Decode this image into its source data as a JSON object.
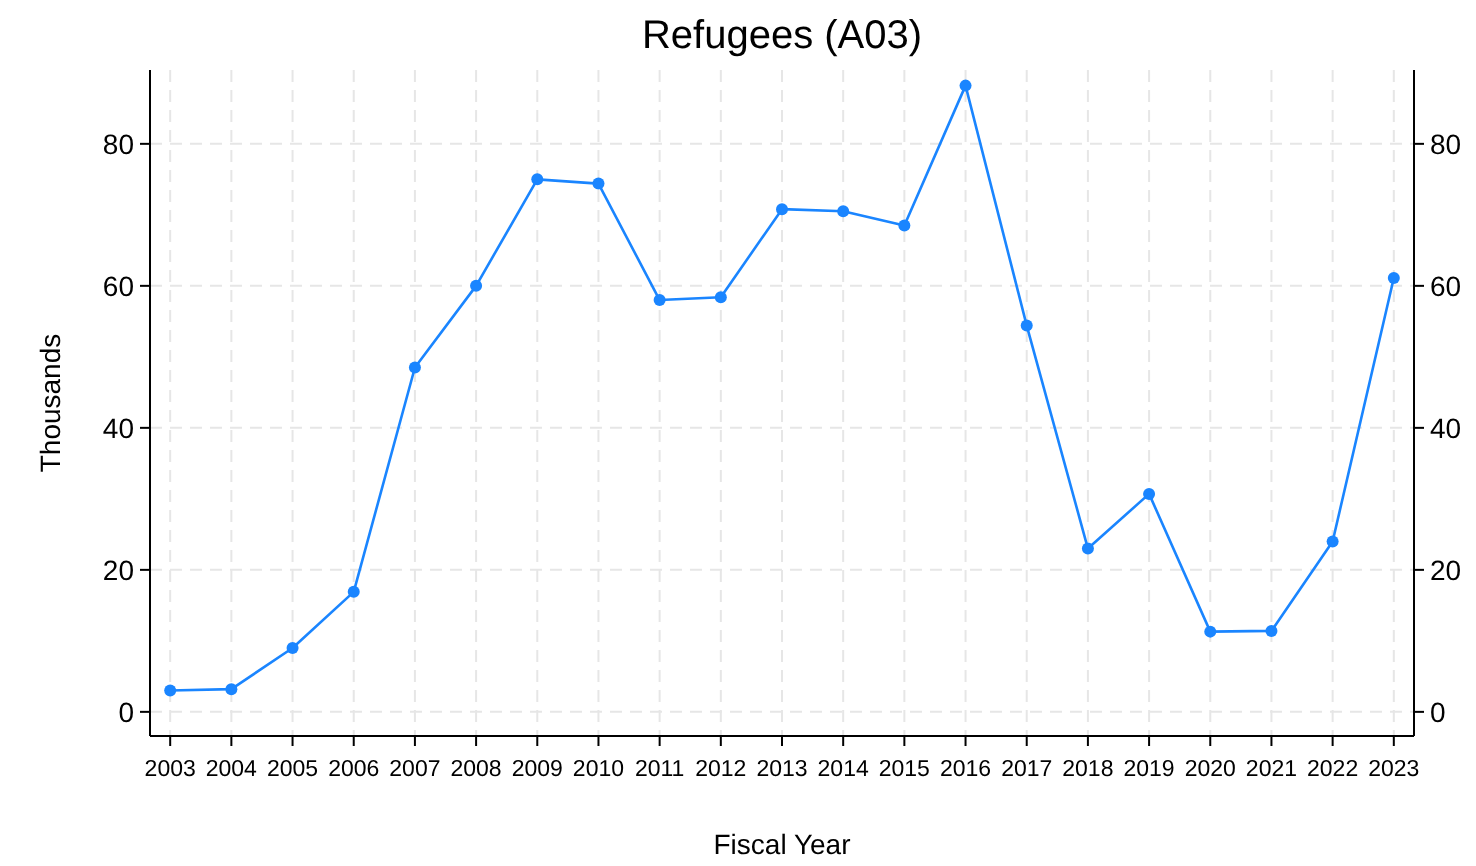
{
  "chart_data": {
    "type": "line",
    "title": "Refugees (A03)",
    "xlabel": "Fiscal Year",
    "ylabel": "Thousands",
    "x": [
      2003,
      2004,
      2005,
      2006,
      2007,
      2008,
      2009,
      2010,
      2011,
      2012,
      2013,
      2014,
      2015,
      2016,
      2017,
      2018,
      2019,
      2020,
      2021,
      2022,
      2023
    ],
    "series": [
      {
        "color": "#1a85ff",
        "values": [
          3,
          3.2,
          9,
          16.9,
          48.5,
          60,
          75,
          74.4,
          58,
          58.4,
          70.8,
          70.5,
          68.5,
          88.2,
          54.4,
          23,
          30.7,
          11.3,
          11.4,
          24,
          61.1
        ]
      }
    ],
    "xlim": [
      2002.67,
      2023.33
    ],
    "xticks": [
      2003,
      2004,
      2005,
      2006,
      2007,
      2008,
      2009,
      2010,
      2011,
      2012,
      2013,
      2014,
      2015,
      2016,
      2017,
      2018,
      2019,
      2020,
      2021,
      2022,
      2023
    ],
    "ylim": [
      -3.4,
      90.4
    ],
    "yticks": [
      0,
      20,
      40,
      60,
      80
    ],
    "y2lim": [
      -3.4,
      90.4
    ],
    "y2ticks": [
      0,
      20,
      40,
      60,
      80
    ],
    "grid": true,
    "marker": "circle",
    "line_style": "solid"
  }
}
